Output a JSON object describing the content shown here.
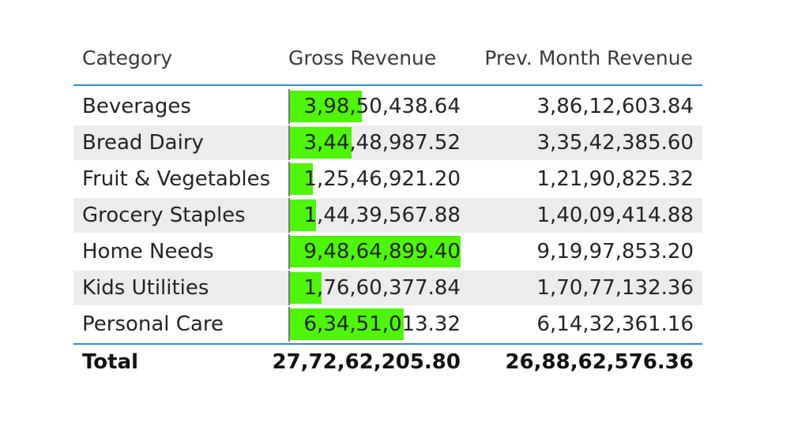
{
  "table": {
    "headers": {
      "category": "Category",
      "gross_revenue": "Gross Revenue",
      "prev_month_revenue": "Prev. Month Revenue"
    },
    "rows": [
      {
        "category": "Beverages",
        "gross_revenue": "3,98,50,438.64",
        "prev_month_revenue": "3,86,12,603.84",
        "gross_value": 39850438.64
      },
      {
        "category": "Bread Dairy",
        "gross_revenue": "3,44,48,987.52",
        "prev_month_revenue": "3,35,42,385.60",
        "gross_value": 34448987.52
      },
      {
        "category": "Fruit & Vegetables",
        "gross_revenue": "1,25,46,921.20",
        "prev_month_revenue": "1,21,90,825.32",
        "gross_value": 12546921.2
      },
      {
        "category": "Grocery Staples",
        "gross_revenue": "1,44,39,567.88",
        "prev_month_revenue": "1,40,09,414.88",
        "gross_value": 14439567.88
      },
      {
        "category": "Home Needs",
        "gross_revenue": "9,48,64,899.40",
        "prev_month_revenue": "9,19,97,853.20",
        "gross_value": 94864899.4
      },
      {
        "category": "Kids Utilities",
        "gross_revenue": "1,76,60,377.84",
        "prev_month_revenue": "1,70,77,132.36",
        "gross_value": 17660377.84
      },
      {
        "category": "Personal Care",
        "gross_revenue": "6,34,51,013.32",
        "prev_month_revenue": "6,14,32,361.16",
        "gross_value": 63451013.32
      }
    ],
    "total": {
      "label": "Total",
      "gross_revenue": "27,72,62,205.80",
      "prev_month_revenue": "26,88,62,576.36"
    }
  },
  "colors": {
    "databar": "#4df507",
    "accent_line": "#2a8fd6",
    "alt_row": "#ececec"
  }
}
